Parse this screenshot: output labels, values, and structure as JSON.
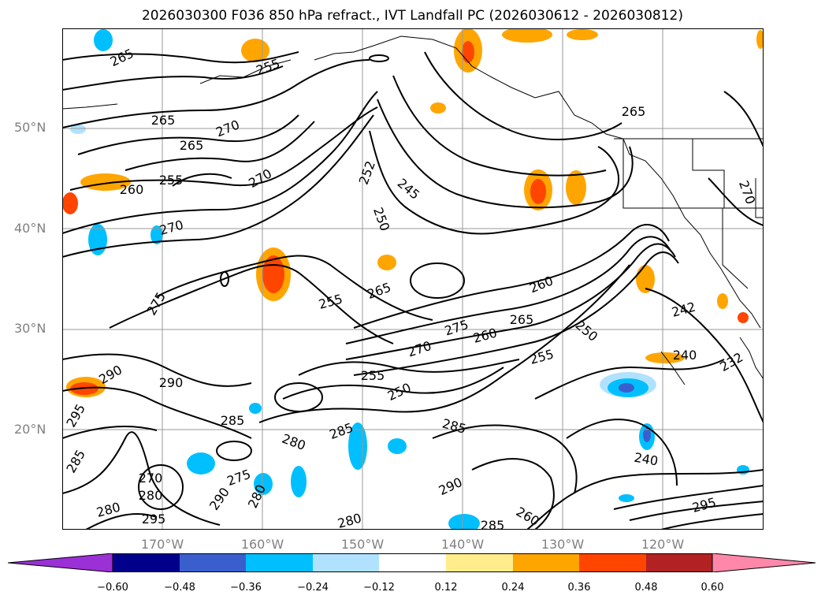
{
  "title": "2026030300 F036 850 hPa refract., IVT Landfall PC (2026030612 - 2026030812)",
  "lat_labels": [
    "50°N",
    "40°N",
    "30°N",
    "20°N"
  ],
  "lon_labels": [
    "170°W",
    "160°W",
    "150°W",
    "140°W",
    "130°W",
    "120°W"
  ],
  "colorbar": {
    "ticks": [
      "−0.60",
      "−0.48",
      "−0.36",
      "−0.24",
      "−0.12",
      "0.12",
      "0.24",
      "0.36",
      "0.48",
      "0.60"
    ],
    "colors": [
      "#9b30d6",
      "#00008b",
      "#3a5fcd",
      "#00bfff",
      "#b0e2ff",
      "#ffffff",
      "#ffec8b",
      "#ffa500",
      "#ff4500",
      "#b22222",
      "#ff88aa"
    ]
  },
  "contour_labels": [
    "265",
    "265",
    "255",
    "270",
    "265",
    "270",
    "265",
    "255",
    "260",
    "252",
    "245",
    "250",
    "270",
    "270",
    "275",
    "265",
    "255",
    "260",
    "275",
    "270",
    "260",
    "265",
    "250",
    "255",
    "240",
    "290",
    "295",
    "290",
    "285",
    "285",
    "280",
    "255",
    "250",
    "285",
    "240",
    "290",
    "285",
    "280",
    "285",
    "270",
    "280",
    "280",
    "275",
    "290",
    "295",
    "280",
    "260",
    "265",
    "260",
    "270",
    "232",
    "242",
    "295"
  ]
}
